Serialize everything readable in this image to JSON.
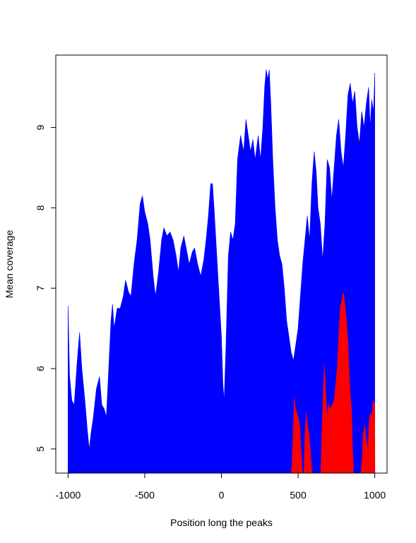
{
  "chart_data": {
    "type": "area",
    "title": "",
    "xlabel": "Position long the peaks",
    "ylabel": "Mean coverage",
    "xlim": [
      -1080,
      1080
    ],
    "ylim": [
      4.7,
      9.9
    ],
    "x_ticks": [
      -1000,
      -500,
      0,
      500,
      1000
    ],
    "x_tick_labels": [
      "-1000",
      "-500",
      "0",
      "500",
      "1000"
    ],
    "y_ticks": [
      5,
      6,
      7,
      8,
      9
    ],
    "y_tick_labels": [
      "5",
      "6",
      "7",
      "8",
      "9"
    ],
    "grid": false,
    "legend": "none",
    "series": [
      {
        "color": "#0000ff",
        "points": [
          [
            -1000,
            6.78
          ],
          [
            -990,
            5.9
          ],
          [
            -975,
            5.6
          ],
          [
            -960,
            5.55
          ],
          [
            -940,
            6.1
          ],
          [
            -925,
            6.45
          ],
          [
            -910,
            6.0
          ],
          [
            -890,
            5.6
          ],
          [
            -875,
            5.25
          ],
          [
            -862,
            5.0
          ],
          [
            -850,
            5.2
          ],
          [
            -835,
            5.4
          ],
          [
            -815,
            5.75
          ],
          [
            -795,
            5.9
          ],
          [
            -780,
            5.55
          ],
          [
            -765,
            5.5
          ],
          [
            -750,
            5.4
          ],
          [
            -735,
            6.0
          ],
          [
            -720,
            6.6
          ],
          [
            -710,
            6.8
          ],
          [
            -700,
            6.5
          ],
          [
            -680,
            6.75
          ],
          [
            -660,
            6.75
          ],
          [
            -640,
            6.9
          ],
          [
            -625,
            7.1
          ],
          [
            -605,
            6.95
          ],
          [
            -590,
            6.9
          ],
          [
            -570,
            7.3
          ],
          [
            -550,
            7.6
          ],
          [
            -530,
            8.05
          ],
          [
            -515,
            8.15
          ],
          [
            -500,
            7.95
          ],
          [
            -480,
            7.8
          ],
          [
            -465,
            7.6
          ],
          [
            -445,
            7.15
          ],
          [
            -430,
            6.9
          ],
          [
            -410,
            7.2
          ],
          [
            -390,
            7.6
          ],
          [
            -375,
            7.75
          ],
          [
            -355,
            7.65
          ],
          [
            -335,
            7.7
          ],
          [
            -315,
            7.6
          ],
          [
            -295,
            7.4
          ],
          [
            -280,
            7.2
          ],
          [
            -265,
            7.5
          ],
          [
            -245,
            7.65
          ],
          [
            -230,
            7.5
          ],
          [
            -210,
            7.3
          ],
          [
            -190,
            7.45
          ],
          [
            -175,
            7.5
          ],
          [
            -155,
            7.3
          ],
          [
            -135,
            7.15
          ],
          [
            -115,
            7.35
          ],
          [
            -100,
            7.6
          ],
          [
            -85,
            7.9
          ],
          [
            -70,
            8.3
          ],
          [
            -58,
            8.3
          ],
          [
            -45,
            7.9
          ],
          [
            -30,
            7.4
          ],
          [
            -15,
            6.9
          ],
          [
            0,
            6.4
          ],
          [
            10,
            5.8
          ],
          [
            18,
            5.6
          ],
          [
            30,
            6.3
          ],
          [
            45,
            7.4
          ],
          [
            60,
            7.7
          ],
          [
            75,
            7.6
          ],
          [
            90,
            7.8
          ],
          [
            105,
            8.6
          ],
          [
            125,
            8.9
          ],
          [
            145,
            8.7
          ],
          [
            160,
            9.1
          ],
          [
            175,
            8.9
          ],
          [
            190,
            8.7
          ],
          [
            205,
            8.85
          ],
          [
            220,
            8.6
          ],
          [
            240,
            8.9
          ],
          [
            255,
            8.6
          ],
          [
            270,
            9.0
          ],
          [
            282,
            9.5
          ],
          [
            292,
            9.72
          ],
          [
            302,
            9.6
          ],
          [
            312,
            9.72
          ],
          [
            322,
            9.3
          ],
          [
            335,
            8.6
          ],
          [
            350,
            8.0
          ],
          [
            365,
            7.6
          ],
          [
            380,
            7.4
          ],
          [
            395,
            7.3
          ],
          [
            410,
            7.0
          ],
          [
            425,
            6.6
          ],
          [
            440,
            6.4
          ],
          [
            455,
            6.2
          ],
          [
            470,
            6.1
          ],
          [
            485,
            6.3
          ],
          [
            500,
            6.5
          ],
          [
            515,
            6.9
          ],
          [
            530,
            7.3
          ],
          [
            545,
            7.6
          ],
          [
            560,
            7.9
          ],
          [
            575,
            7.6
          ],
          [
            590,
            8.3
          ],
          [
            605,
            8.7
          ],
          [
            618,
            8.45
          ],
          [
            630,
            8.0
          ],
          [
            645,
            7.8
          ],
          [
            660,
            7.35
          ],
          [
            675,
            7.8
          ],
          [
            690,
            8.6
          ],
          [
            705,
            8.5
          ],
          [
            720,
            8.1
          ],
          [
            735,
            8.5
          ],
          [
            750,
            8.9
          ],
          [
            765,
            9.1
          ],
          [
            780,
            8.7
          ],
          [
            795,
            8.5
          ],
          [
            810,
            8.9
          ],
          [
            825,
            9.4
          ],
          [
            840,
            9.55
          ],
          [
            855,
            9.3
          ],
          [
            870,
            9.45
          ],
          [
            885,
            9.0
          ],
          [
            900,
            8.8
          ],
          [
            915,
            9.2
          ],
          [
            930,
            9.0
          ],
          [
            945,
            9.3
          ],
          [
            960,
            9.5
          ],
          [
            970,
            9.0
          ],
          [
            980,
            9.35
          ],
          [
            992,
            9.2
          ],
          [
            1000,
            9.68
          ]
        ]
      },
      {
        "color": "#ff0000",
        "points": [
          [
            455,
            4.7
          ],
          [
            460,
            4.8
          ],
          [
            468,
            5.2
          ],
          [
            475,
            5.65
          ],
          [
            483,
            5.5
          ],
          [
            492,
            5.45
          ],
          [
            500,
            5.4
          ],
          [
            510,
            5.3
          ],
          [
            520,
            4.95
          ],
          [
            530,
            4.7
          ],
          [
            538,
            4.7
          ],
          [
            545,
            5.2
          ],
          [
            552,
            5.45
          ],
          [
            560,
            5.3
          ],
          [
            570,
            5.2
          ],
          [
            580,
            5.0
          ],
          [
            590,
            4.7
          ],
          [
            648,
            4.7
          ],
          [
            655,
            5.2
          ],
          [
            662,
            5.6
          ],
          [
            670,
            6.05
          ],
          [
            678,
            5.8
          ],
          [
            688,
            5.4
          ],
          [
            700,
            5.55
          ],
          [
            712,
            5.5
          ],
          [
            722,
            5.55
          ],
          [
            735,
            5.6
          ],
          [
            745,
            5.8
          ],
          [
            755,
            6.0
          ],
          [
            765,
            6.4
          ],
          [
            775,
            6.75
          ],
          [
            785,
            6.85
          ],
          [
            795,
            6.95
          ],
          [
            805,
            6.8
          ],
          [
            815,
            6.6
          ],
          [
            825,
            6.35
          ],
          [
            832,
            6.0
          ],
          [
            840,
            5.7
          ],
          [
            848,
            5.5
          ],
          [
            855,
            5.0
          ],
          [
            862,
            4.7
          ],
          [
            910,
            4.7
          ],
          [
            918,
            4.9
          ],
          [
            925,
            5.2
          ],
          [
            935,
            5.3
          ],
          [
            945,
            5.1
          ],
          [
            955,
            5.0
          ],
          [
            962,
            5.3
          ],
          [
            970,
            5.45
          ],
          [
            980,
            5.4
          ],
          [
            990,
            5.6
          ],
          [
            1000,
            5.55
          ],
          [
            1001,
            4.7
          ]
        ]
      }
    ]
  }
}
